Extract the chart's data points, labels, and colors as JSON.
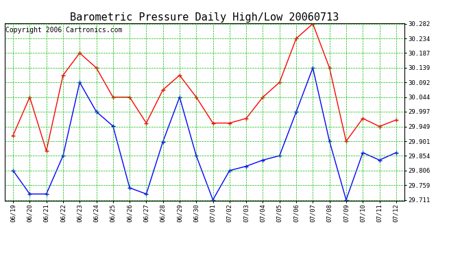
{
  "title": "Barometric Pressure Daily High/Low 20060713",
  "copyright": "Copyright 2006 Cartronics.com",
  "dates": [
    "06/19",
    "06/20",
    "06/21",
    "06/22",
    "06/23",
    "06/24",
    "06/25",
    "06/26",
    "06/27",
    "06/28",
    "06/29",
    "06/30",
    "07/01",
    "07/02",
    "07/03",
    "07/04",
    "07/05",
    "07/06",
    "07/07",
    "07/08",
    "07/09",
    "07/10",
    "07/11",
    "07/12"
  ],
  "high": [
    29.92,
    30.044,
    29.87,
    30.115,
    30.187,
    30.139,
    30.044,
    30.044,
    29.96,
    30.068,
    30.115,
    30.044,
    29.96,
    29.96,
    29.975,
    30.044,
    30.092,
    30.234,
    30.282,
    30.139,
    29.901,
    29.975,
    29.949,
    29.97
  ],
  "low": [
    29.806,
    29.73,
    29.73,
    29.854,
    30.092,
    29.997,
    29.95,
    29.75,
    29.73,
    29.9,
    30.044,
    29.854,
    29.711,
    29.806,
    29.82,
    29.84,
    29.854,
    29.996,
    30.139,
    29.901,
    29.711,
    29.864,
    29.84,
    29.864
  ],
  "ylim_min": 29.711,
  "ylim_max": 30.282,
  "yticks": [
    29.711,
    29.759,
    29.806,
    29.854,
    29.901,
    29.949,
    29.997,
    30.044,
    30.092,
    30.139,
    30.187,
    30.234,
    30.282
  ],
  "high_color": "#ff0000",
  "low_color": "#0000ff",
  "bg_color": "#ffffff",
  "grid_color": "#00bb00",
  "title_fontsize": 11,
  "tick_fontsize": 6.5,
  "copyright_fontsize": 7
}
